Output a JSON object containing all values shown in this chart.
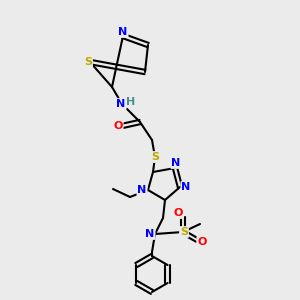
{
  "bg_color": "#ebebeb",
  "atom_colors": {
    "C": "#000000",
    "N": "#0000ff",
    "O": "#ff0000",
    "S": "#bbaa00",
    "H": "#4a9090",
    "bond": "#000000"
  },
  "figsize": [
    3.0,
    3.0
  ],
  "dpi": 100,
  "xlim": [
    0,
    300
  ],
  "ylim": [
    0,
    300
  ]
}
